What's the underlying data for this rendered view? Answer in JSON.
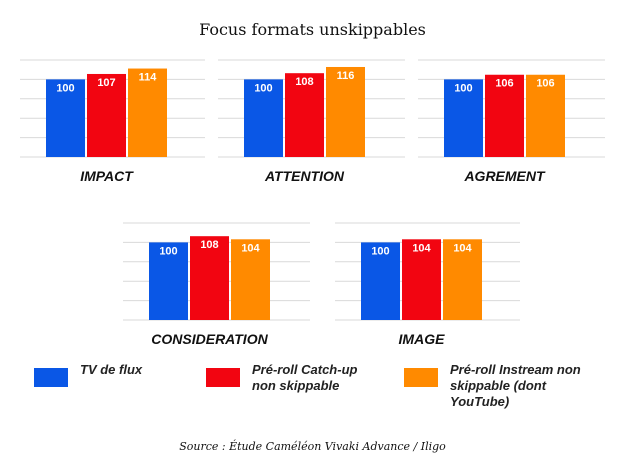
{
  "title": "Focus formats unskippables",
  "source": "Source : Étude Caméléon Vivaki Advance / Iligo",
  "colors": {
    "tv": "#0a57e6",
    "catchup": "#f20511",
    "instream": "#ff8a00",
    "grid": "#d9d9d9"
  },
  "legend": [
    {
      "label": "TV de flux",
      "color": "#0a57e6"
    },
    {
      "label": "Pré-roll Catch-up\nnon skippable",
      "color": "#f20511"
    },
    {
      "label": "Pré-roll Instream non\nskippable (dont\nYouTube)",
      "color": "#ff8a00"
    }
  ],
  "chart_data": [
    {
      "type": "bar",
      "title": "IMPACT",
      "categories": [
        "TV de flux",
        "Pré-roll Catch-up non skippable",
        "Pré-roll Instream non skippable (dont YouTube)"
      ],
      "values": [
        100,
        107,
        114
      ],
      "ylim": [
        0,
        125
      ],
      "grid": true
    },
    {
      "type": "bar",
      "title": "ATTENTION",
      "categories": [
        "TV de flux",
        "Pré-roll Catch-up non skippable",
        "Pré-roll Instream non skippable (dont YouTube)"
      ],
      "values": [
        100,
        108,
        116
      ],
      "ylim": [
        0,
        125
      ],
      "grid": true
    },
    {
      "type": "bar",
      "title": "AGREMENT",
      "categories": [
        "TV de flux",
        "Pré-roll Catch-up non skippable",
        "Pré-roll Instream non skippable (dont YouTube)"
      ],
      "values": [
        100,
        106,
        106
      ],
      "ylim": [
        0,
        125
      ],
      "grid": true
    },
    {
      "type": "bar",
      "title": "CONSIDERATION",
      "categories": [
        "TV de flux",
        "Pré-roll Catch-up non skippable",
        "Pré-roll Instream non skippable (dont YouTube)"
      ],
      "values": [
        100,
        108,
        104
      ],
      "ylim": [
        0,
        125
      ],
      "grid": true
    },
    {
      "type": "bar",
      "title": "IMAGE",
      "categories": [
        "TV de flux",
        "Pré-roll Catch-up non skippable",
        "Pré-roll Instream non skippable (dont YouTube)"
      ],
      "values": [
        100,
        104,
        104
      ],
      "ylim": [
        0,
        125
      ],
      "grid": true
    }
  ]
}
